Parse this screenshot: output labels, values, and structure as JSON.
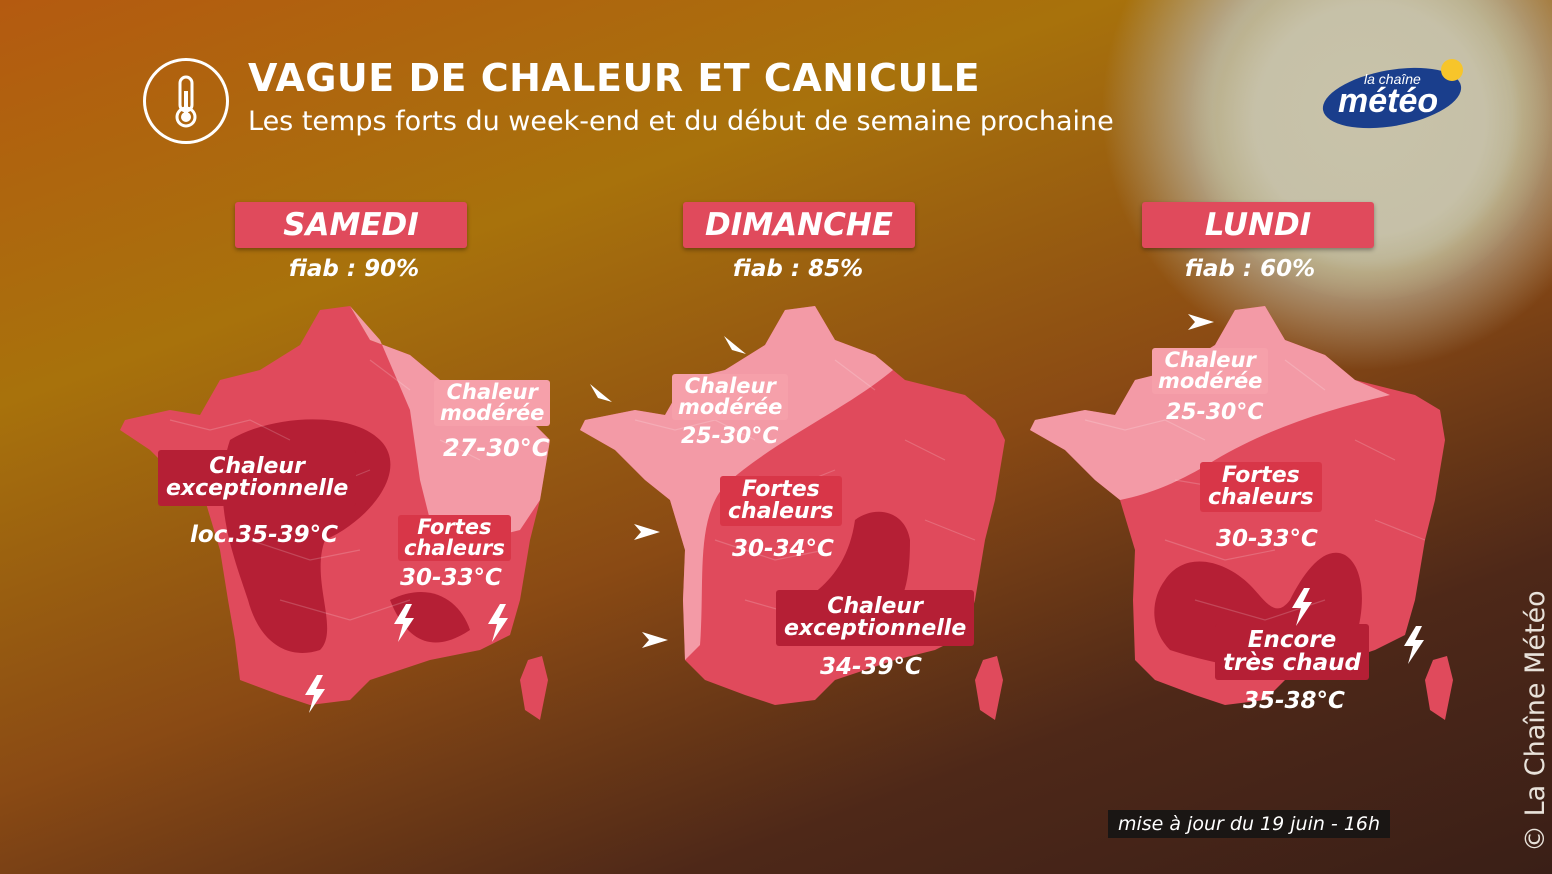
{
  "header": {
    "title": "VAGUE DE CHALEUR ET CANICULE",
    "subtitle": "Les temps forts du week-end et du début de semaine prochaine",
    "icon": "thermometer-icon"
  },
  "logo": {
    "line1": "la chaîne",
    "line2": "météo"
  },
  "colors": {
    "chaleur_moderee": "#f6a0aa",
    "fortes_chaleurs": "#e04a5c",
    "chaleur_exceptionnelle": "#b51f35",
    "banner": "#e04a5c"
  },
  "days": [
    {
      "name": "SAMEDI",
      "fiab": "fiab : 90%",
      "zones": [
        {
          "label_l1": "Chaleur",
          "label_l2": "modérée",
          "range": "27-30°C"
        },
        {
          "label_l1": "Chaleur",
          "label_l2": "exceptionnelle",
          "range": "loc.35-39°C"
        },
        {
          "label_l1": "Fortes",
          "label_l2": "chaleurs",
          "range": "30-33°C"
        }
      ]
    },
    {
      "name": "DIMANCHE",
      "fiab": "fiab : 85%",
      "zones": [
        {
          "label_l1": "Chaleur",
          "label_l2": "modérée",
          "range": "25-30°C"
        },
        {
          "label_l1": "Fortes",
          "label_l2": "chaleurs",
          "range": "30-34°C"
        },
        {
          "label_l1": "Chaleur",
          "label_l2": "exceptionnelle",
          "range": "34-39°C"
        }
      ]
    },
    {
      "name": "LUNDI",
      "fiab": "fiab : 60%",
      "zones": [
        {
          "label_l1": "Chaleur",
          "label_l2": "modérée",
          "range": "25-30°C"
        },
        {
          "label_l1": "Fortes",
          "label_l2": "chaleurs",
          "range": "30-33°C"
        },
        {
          "label_l1": "Encore",
          "label_l2": "très chaud",
          "range": "35-38°C"
        }
      ]
    }
  ],
  "update_note": "mise à jour du 19 juin - 16h",
  "copyright": "© La Chaîne Météo"
}
